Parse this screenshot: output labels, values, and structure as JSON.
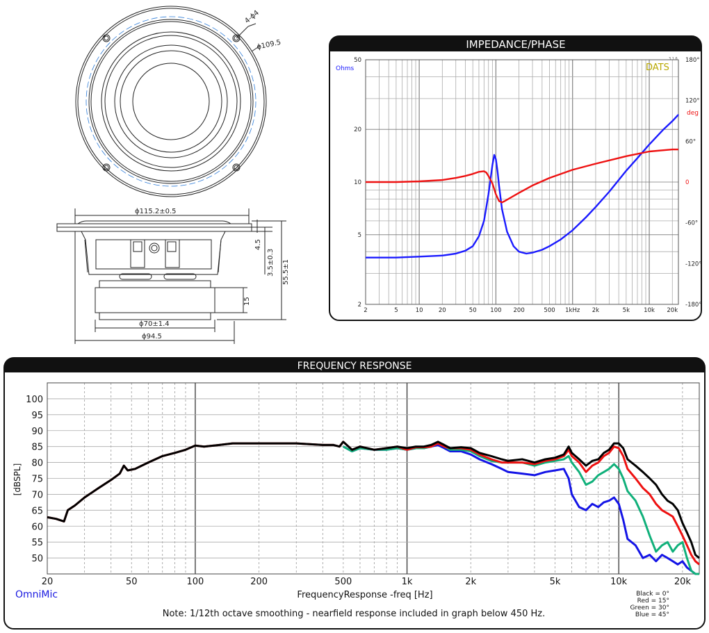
{
  "drawing": {
    "top_labels": {
      "holes": "4-ϕ4",
      "bolt_circle": "ϕ109.5"
    },
    "side_labels": {
      "outer_diameter": "ϕ115.2±0.5",
      "flange_top": "4.5",
      "flange_height": "3.5±0.3",
      "total_height": "55.5±1",
      "magnet_height": "15",
      "magnet_diameter": "ϕ70±1.4",
      "basket_diameter": "ϕ94.5"
    }
  },
  "impedance": {
    "panel_title": "IMPEDANCE/PHASE",
    "unit_label": "Ohms",
    "brand": "DATS",
    "brand_version": "3.1.6",
    "phase_unit": "deg",
    "y_ticks": [
      "50",
      "20",
      "10",
      "5",
      "2"
    ],
    "x_ticks": [
      "2",
      "5",
      "10",
      "20",
      "50",
      "100",
      "200",
      "500",
      "1kHz",
      "2k",
      "5k",
      "10k",
      "20k"
    ],
    "phase_ticks": [
      "180°",
      "120°",
      "60°",
      "0",
      "-60°",
      "-120°",
      "-180°"
    ]
  },
  "frequency": {
    "panel_title": "FREQUENCY RESPONSE",
    "y_label": "[dBSPL]",
    "x_label": "FrequencyResponse -freq [Hz]",
    "software": "OmniMic",
    "note": "Note: 1/12th octave smoothing - nearfield response included in graph below 450 Hz.",
    "legend": [
      "Black = 0°",
      "Red = 15°",
      "Green = 30°",
      "Blue = 45°"
    ],
    "y_ticks": [
      "100",
      "95",
      "90",
      "85",
      "80",
      "75",
      "70",
      "65",
      "60",
      "55",
      "50"
    ],
    "x_ticks": [
      "20",
      "50",
      "100",
      "200",
      "500",
      "1k",
      "2k",
      "5k",
      "10k",
      "20k"
    ]
  },
  "colors": {
    "impedance": "#1a1aff",
    "phase": "#ee1111",
    "black": "#000000",
    "red": "#ee1111",
    "green": "#10b07a",
    "blue": "#1414e6",
    "brand": "#b8a800",
    "panel_border": "#111111"
  },
  "chart_data": [
    {
      "type": "line",
      "title": "IMPEDANCE/PHASE",
      "xscale": "log",
      "yscale": "log",
      "xlim": [
        2,
        24000
      ],
      "ylim": [
        2,
        50
      ],
      "ylabel": "Ohms",
      "y2label": "deg",
      "y2lim": [
        -180,
        180
      ],
      "series": [
        {
          "axis": "left",
          "x": [
            2,
            5,
            10,
            20,
            30,
            40,
            50,
            60,
            70,
            80,
            90,
            95,
            100,
            105,
            110,
            120,
            140,
            170,
            200,
            250,
            300,
            400,
            500,
            700,
            1000,
            1500,
            2000,
            3000,
            5000,
            7000,
            10000,
            15000,
            20000,
            24000
          ],
          "y": [
            3.7,
            3.7,
            3.75,
            3.8,
            3.9,
            4.05,
            4.3,
            4.9,
            6.0,
            8.5,
            12.5,
            14.3,
            13.5,
            11.5,
            9.5,
            7.0,
            5.2,
            4.3,
            4.0,
            3.9,
            3.95,
            4.1,
            4.3,
            4.7,
            5.3,
            6.3,
            7.2,
            8.8,
            11.6,
            13.7,
            16.4,
            19.8,
            22.3,
            24.3
          ]
        },
        {
          "axis": "right",
          "x": [
            2,
            5,
            10,
            20,
            30,
            40,
            50,
            60,
            70,
            75,
            80,
            90,
            100,
            110,
            120,
            130,
            150,
            200,
            300,
            500,
            1000,
            2000,
            5000,
            10000,
            20000,
            24000
          ],
          "y": [
            0,
            0,
            1,
            3,
            6,
            9,
            12,
            15,
            16,
            14,
            9,
            -2,
            -18,
            -28,
            -30,
            -28,
            -24,
            -16,
            -5,
            6,
            18,
            27,
            38,
            45,
            48,
            48
          ]
        }
      ]
    },
    {
      "type": "line",
      "title": "FREQUENCY RESPONSE",
      "xscale": "log",
      "xlim": [
        20,
        24000
      ],
      "ylim": [
        45,
        105
      ],
      "xlabel": "FrequencyResponse -freq [Hz]",
      "ylabel": "[dBSPL]",
      "x": [
        20,
        22,
        24,
        25,
        27,
        30,
        35,
        40,
        44,
        46,
        48,
        52,
        60,
        70,
        80,
        90,
        100,
        110,
        130,
        150,
        200,
        300,
        400,
        450,
        480,
        500,
        550,
        600,
        700,
        800,
        900,
        1000,
        1100,
        1200,
        1300,
        1400,
        1500,
        1600,
        1800,
        2000,
        2200,
        2500,
        2800,
        3000,
        3500,
        4000,
        4500,
        5000,
        5500,
        5800,
        6000,
        6500,
        7000,
        7500,
        8000,
        8500,
        9000,
        9500,
        10000,
        10500,
        11000,
        12000,
        13000,
        14000,
        15000,
        16000,
        17000,
        18000,
        19000,
        20000,
        21000,
        22000,
        23000,
        24000
      ],
      "series": [
        {
          "name": "Black = 0°",
          "y": [
            62.8,
            62.3,
            61.5,
            65.0,
            66.5,
            69.0,
            72.0,
            74.5,
            76.5,
            79.0,
            77.5,
            78.0,
            80.0,
            82.0,
            83.0,
            84.0,
            85.3,
            85.0,
            85.5,
            86.0,
            86.0,
            86.0,
            85.5,
            85.5,
            85.0,
            86.5,
            84.0,
            85.0,
            84.0,
            84.5,
            85.0,
            84.5,
            85.0,
            85.0,
            85.5,
            86.5,
            85.5,
            84.5,
            84.8,
            84.5,
            83.0,
            82.0,
            81.0,
            80.5,
            81.0,
            80.0,
            81.0,
            81.5,
            82.5,
            85.0,
            83.0,
            81.0,
            79.0,
            80.5,
            81.0,
            83.0,
            84.0,
            86.0,
            86.0,
            84.5,
            81.0,
            79.0,
            77.0,
            75.0,
            73.0,
            70.0,
            68.0,
            67.0,
            65.0,
            61.0,
            58.0,
            55.0,
            51.0,
            50.0
          ]
        },
        {
          "name": "Red = 15°",
          "y": [
            62.8,
            62.3,
            61.5,
            65.0,
            66.5,
            69.0,
            72.0,
            74.5,
            76.5,
            79.0,
            77.5,
            78.0,
            80.0,
            82.0,
            83.0,
            84.0,
            85.3,
            85.0,
            85.5,
            86.0,
            86.0,
            86.0,
            85.5,
            85.5,
            85.0,
            86.5,
            84.0,
            85.0,
            84.0,
            84.5,
            85.0,
            84.0,
            84.8,
            84.8,
            85.0,
            86.0,
            85.0,
            84.5,
            84.5,
            84.0,
            82.5,
            81.0,
            80.0,
            80.0,
            80.0,
            79.5,
            80.5,
            81.0,
            82.0,
            84.0,
            82.0,
            80.0,
            77.0,
            79.0,
            80.0,
            82.0,
            83.0,
            85.0,
            84.5,
            82.0,
            78.0,
            75.0,
            72.0,
            70.0,
            67.0,
            65.0,
            64.0,
            63.0,
            60.0,
            57.0,
            54.0,
            51.0,
            49.0,
            48.0
          ]
        },
        {
          "name": "Green = 30°",
          "y": [
            null,
            null,
            null,
            null,
            null,
            null,
            null,
            null,
            null,
            null,
            null,
            null,
            null,
            null,
            null,
            null,
            null,
            null,
            null,
            null,
            null,
            null,
            null,
            null,
            null,
            85.0,
            83.5,
            84.5,
            84.0,
            84.0,
            84.5,
            84.0,
            84.5,
            84.5,
            85.0,
            86.0,
            85.0,
            84.0,
            84.0,
            83.5,
            82.0,
            80.5,
            80.0,
            80.0,
            80.0,
            79.0,
            80.0,
            80.5,
            81.0,
            82.0,
            80.0,
            77.0,
            73.0,
            74.0,
            76.0,
            77.0,
            78.0,
            79.5,
            78.0,
            75.0,
            71.0,
            68.0,
            63.0,
            57.0,
            52.0,
            54.0,
            55.0,
            52.0,
            54.0,
            55.0,
            50.0,
            46.0,
            44.0,
            44.0
          ]
        },
        {
          "name": "Blue = 45°",
          "y": [
            null,
            null,
            null,
            null,
            null,
            null,
            null,
            null,
            null,
            null,
            null,
            null,
            null,
            null,
            null,
            null,
            null,
            null,
            null,
            null,
            null,
            null,
            null,
            null,
            null,
            85.0,
            83.5,
            84.5,
            84.0,
            84.0,
            84.5,
            84.0,
            84.5,
            84.5,
            85.0,
            85.5,
            84.5,
            83.5,
            83.5,
            82.5,
            81.0,
            79.5,
            78.0,
            77.0,
            76.5,
            76.0,
            77.0,
            77.5,
            78.0,
            75.0,
            70.0,
            66.0,
            65.0,
            67.0,
            66.0,
            67.5,
            68.0,
            69.0,
            67.0,
            62.0,
            56.0,
            54.0,
            50.0,
            51.0,
            49.0,
            51.0,
            50.0,
            49.0,
            48.0,
            49.0,
            47.0,
            46.0,
            45.0,
            45.0
          ]
        }
      ]
    }
  ]
}
